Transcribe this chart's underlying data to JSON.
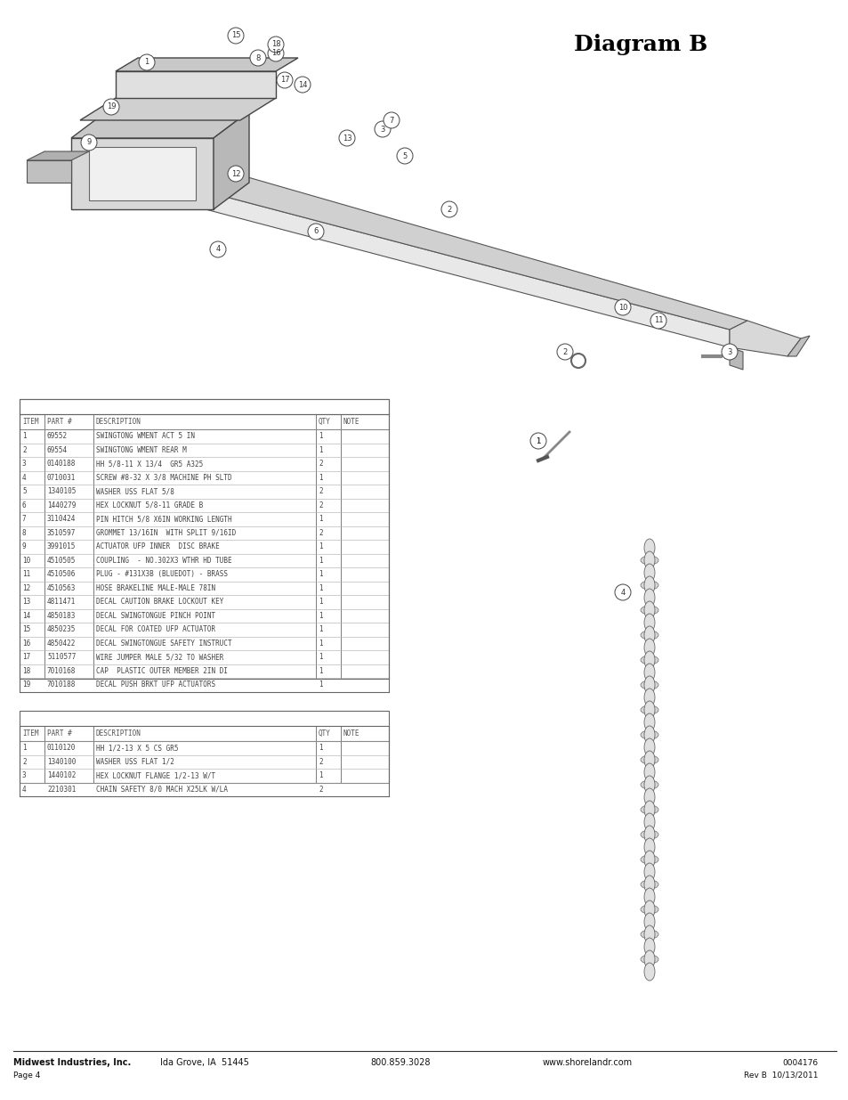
{
  "title": "Diagram B",
  "page_num": "Page 4",
  "doc_id": "0004176",
  "rev": "Rev B  10/13/2011",
  "footer_company": "Midwest Industries, Inc.",
  "footer_city": "Ida Grove, IA  51445",
  "footer_phone": "800.859.3028",
  "footer_web": "www.shorelandr.com",
  "table1_headers": [
    "ITEM",
    "PART #",
    "DESCRIPTION",
    "QTY",
    "NOTE"
  ],
  "table1_rows": [
    [
      "1",
      "69552",
      "SWINGTONG WMENT ACT 5 IN",
      "1",
      ""
    ],
    [
      "2",
      "69554",
      "SWINGTONG WMENT REAR M",
      "1",
      ""
    ],
    [
      "3",
      "0140188",
      "HH 5/8-11 X 13/4  GR5 A325",
      "2",
      ""
    ],
    [
      "4",
      "0710031",
      "SCREW #8-32 X 3/8 MACHINE PH SLTD",
      "1",
      ""
    ],
    [
      "5",
      "1340105",
      "WASHER USS FLAT 5/8",
      "2",
      ""
    ],
    [
      "6",
      "1440279",
      "HEX LOCKNUT 5/8-11 GRADE B",
      "2",
      ""
    ],
    [
      "7",
      "3110424",
      "PIN HITCH 5/8 X6IN WORKING LENGTH",
      "1",
      ""
    ],
    [
      "8",
      "3510597",
      "GROMMET 13/16IN  WITH SPLIT 9/16ID",
      "2",
      ""
    ],
    [
      "9",
      "3991015",
      "ACTUATOR UFP INNER  DISC BRAKE",
      "1",
      ""
    ],
    [
      "10",
      "4510505",
      "COUPLING  - NO.302X3 WTHR HD TUBE",
      "1",
      ""
    ],
    [
      "11",
      "4510506",
      "PLUG - #131X3B (BLUEDOT) - BRASS",
      "1",
      ""
    ],
    [
      "12",
      "4510563",
      "HOSE BRAKELINE MALE-MALE 78IN",
      "1",
      ""
    ],
    [
      "13",
      "4811471",
      "DECAL CAUTION BRAKE LOCKOUT KEY",
      "1",
      ""
    ],
    [
      "14",
      "4850183",
      "DECAL SWINGTONGUE PINCH POINT",
      "1",
      ""
    ],
    [
      "15",
      "4850235",
      "DECAL FOR COATED UFP ACTUATOR",
      "1",
      ""
    ],
    [
      "16",
      "4850422",
      "DECAL SWINGTONGUE SAFETY INSTRUCT",
      "1",
      ""
    ],
    [
      "17",
      "5110577",
      "WIRE JUMPER MALE 5/32 TO WASHER",
      "1",
      ""
    ],
    [
      "18",
      "7010168",
      "CAP  PLASTIC OUTER MEMBER 2IN DI",
      "1",
      ""
    ],
    [
      "19",
      "7010188",
      "DECAL PUSH BRKT UFP ACTUATORS",
      "1",
      ""
    ]
  ],
  "table2_headers": [
    "ITEM",
    "PART #",
    "DESCRIPTION",
    "QTY",
    "NOTE"
  ],
  "table2_rows": [
    [
      "1",
      "0110120",
      "HH 1/2-13 X 5 CS GR5",
      "1",
      ""
    ],
    [
      "2",
      "1340100",
      "WASHER USS FLAT 1/2",
      "2",
      ""
    ],
    [
      "3",
      "1440102",
      "HEX LOCKNUT FLANGE 1/2-13 W/T",
      "1",
      ""
    ],
    [
      "4",
      "2210301",
      "CHAIN SAFETY 8/0 MACH X25LK W/LA",
      "2",
      ""
    ]
  ],
  "bg_color": "#ffffff",
  "table_line_color": "#666666",
  "header_font_color": "#555555",
  "text_color": "#444444",
  "title_color": "#000000"
}
